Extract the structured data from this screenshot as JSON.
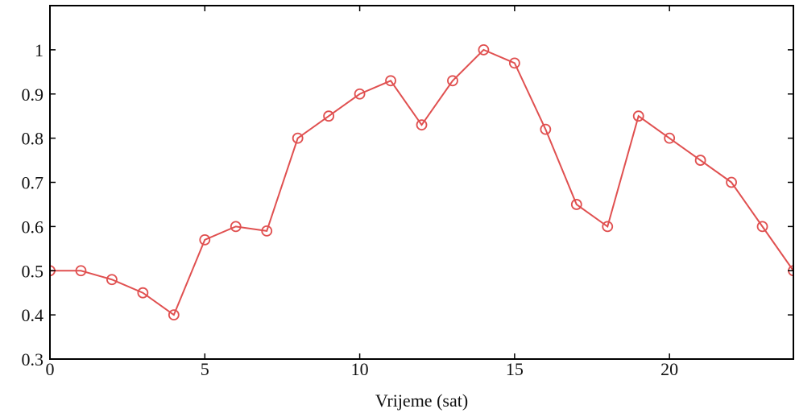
{
  "chart_data": {
    "type": "line",
    "title": "",
    "xlabel": "Vrijeme (sat)",
    "ylabel": "",
    "xlim": [
      0,
      24
    ],
    "ylim": [
      0.3,
      1.1
    ],
    "xticks": [
      0,
      5,
      10,
      15,
      20
    ],
    "yticks": [
      0.3,
      0.4,
      0.5,
      0.6,
      0.7,
      0.8,
      0.9,
      1
    ],
    "grid": false,
    "legend": "none",
    "series": [
      {
        "color": "#e05050",
        "marker": "open-circle",
        "x": [
          0,
          1,
          2,
          3,
          4,
          5,
          6,
          7,
          8,
          9,
          10,
          11,
          12,
          13,
          14,
          15,
          16,
          17,
          18,
          19,
          20,
          21,
          22,
          23,
          24
        ],
        "y": [
          0.5,
          0.5,
          0.48,
          0.45,
          0.4,
          0.57,
          0.6,
          0.59,
          0.8,
          0.85,
          0.9,
          0.93,
          0.83,
          0.93,
          1.0,
          0.97,
          0.82,
          0.65,
          0.6,
          0.85,
          0.8,
          0.75,
          0.7,
          0.6,
          0.5
        ]
      }
    ]
  }
}
